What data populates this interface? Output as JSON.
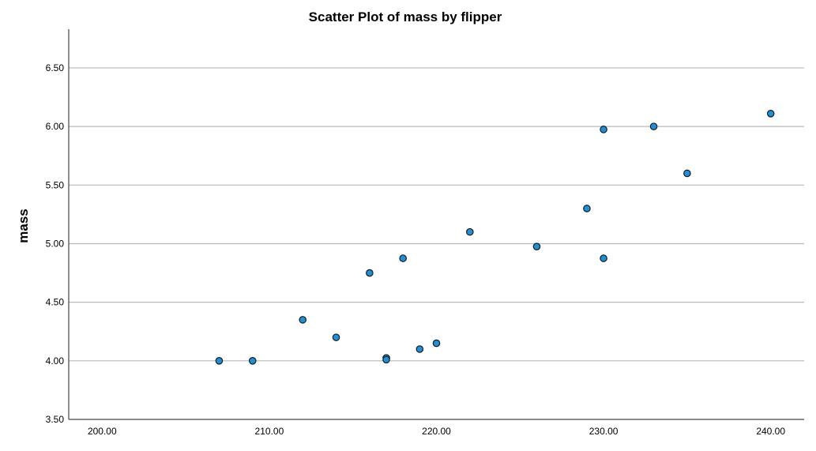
{
  "chart_data": {
    "type": "scatter",
    "title": "Scatter Plot of mass by flipper",
    "xlabel": "",
    "ylabel": "mass",
    "xlim": [
      198,
      242
    ],
    "ylim": [
      3.5,
      6.83
    ],
    "x_ticks": [
      "200.00",
      "210.00",
      "220.00",
      "230.00",
      "240.00"
    ],
    "x_tick_values": [
      200,
      210,
      220,
      230,
      240
    ],
    "y_ticks": [
      "3.50",
      "4.00",
      "4.50",
      "5.00",
      "5.50",
      "6.00",
      "6.50"
    ],
    "y_tick_values": [
      3.5,
      4.0,
      4.5,
      5.0,
      5.5,
      6.0,
      6.5
    ],
    "grid": "horizontal",
    "point_color": "#1f8fd6",
    "points": [
      {
        "x": 207,
        "y": 4.0
      },
      {
        "x": 209,
        "y": 4.0
      },
      {
        "x": 212,
        "y": 4.35
      },
      {
        "x": 214,
        "y": 4.2
      },
      {
        "x": 216,
        "y": 4.75
      },
      {
        "x": 217,
        "y": 4.025
      },
      {
        "x": 217,
        "y": 4.01
      },
      {
        "x": 218,
        "y": 4.875
      },
      {
        "x": 219,
        "y": 4.1
      },
      {
        "x": 220,
        "y": 4.15
      },
      {
        "x": 222,
        "y": 5.1
      },
      {
        "x": 226,
        "y": 4.975
      },
      {
        "x": 229,
        "y": 5.3
      },
      {
        "x": 230,
        "y": 5.975
      },
      {
        "x": 230,
        "y": 4.875
      },
      {
        "x": 233,
        "y": 6.0
      },
      {
        "x": 235,
        "y": 5.6
      },
      {
        "x": 240,
        "y": 6.11
      }
    ]
  }
}
